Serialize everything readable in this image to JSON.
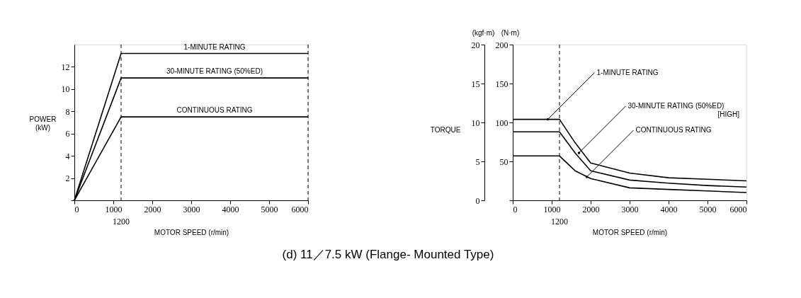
{
  "chart_data": [
    {
      "type": "line",
      "xlabel": "MOTOR SPEED (r/min)",
      "ylabel": "POWER (kW)",
      "xlim": [
        0,
        6000
      ],
      "xticks": [
        0,
        1000,
        2000,
        3000,
        4000,
        5000,
        6000
      ],
      "ylim": [
        0,
        14
      ],
      "yticks": [
        {
          "value": 0,
          "label": null
        },
        2,
        4,
        6,
        8,
        10,
        12
      ],
      "grid": false,
      "marker": "none",
      "line_style": "solid",
      "series": [
        {
          "name": "1-MINUTE RATING",
          "color": "#000000",
          "x": [
            0,
            1200,
            6000
          ],
          "values": [
            0,
            13.2,
            13.2
          ]
        },
        {
          "name": "30-MINUTE RATING (50%ED)",
          "color": "#000000",
          "x": [
            0,
            1200,
            6000
          ],
          "values": [
            0,
            11,
            11
          ]
        },
        {
          "name": "CONTINUOUS RATING",
          "color": "#000000",
          "x": [
            0,
            1200,
            6000
          ],
          "values": [
            0,
            7.5,
            7.5
          ]
        }
      ],
      "ref_lines": [
        {
          "axis": "x",
          "value": 1200,
          "label": "1200",
          "line_style": "dashed"
        },
        {
          "axis": "x",
          "value": 6000,
          "label": null,
          "line_style": "dashed"
        }
      ],
      "annotations": [
        "(d) 11／7.5 kW (Flange- Mounted Type)"
      ]
    },
    {
      "type": "line",
      "xlabel": "MOTOR SPEED (r/min)",
      "ylabel": "(N·m)",
      "y2label": "(kgf·m)",
      "xlim": [
        0,
        6000
      ],
      "xticks": [
        0,
        1000,
        2000,
        3000,
        4000,
        5000,
        6000
      ],
      "ylim": [
        0,
        200
      ],
      "yticks": [
        {
          "value": 0,
          "label": null
        },
        50,
        100,
        150,
        200
      ],
      "y2lim": [
        0,
        20
      ],
      "y2ticks": [
        0,
        5,
        10,
        15,
        20
      ],
      "grid": false,
      "marker": "none",
      "line_style": "solid",
      "series": [
        {
          "color": "#000000",
          "x": [
            0,
            1200,
            1600,
            2000,
            3000,
            4000,
            5000,
            6000
          ],
          "values": [
            104,
            104,
            74,
            48,
            35,
            29,
            27,
            25
          ]
        },
        {
          "color": "#000000",
          "x": [
            0,
            1200,
            1600,
            2000,
            3000,
            4000,
            5000,
            6000
          ],
          "values": [
            88,
            88,
            61,
            38,
            26,
            22,
            19,
            17
          ]
        },
        {
          "color": "#000000",
          "x": [
            0,
            1200,
            1600,
            2000,
            3000,
            4000,
            5000,
            6000
          ],
          "values": [
            57,
            57,
            38,
            28,
            16,
            14,
            12,
            10
          ]
        }
      ],
      "ref_lines": [
        {
          "axis": "x",
          "value": 1200,
          "label": "1200",
          "line_style": "dashed"
        }
      ],
      "annotations": [
        {
          "text": "1-MINUTE RATING",
          "x": 900,
          "y": 104
        },
        {
          "text": "30-MINUTE RATING (50%ED)",
          "x": 1700,
          "y": 61
        },
        {
          "text": "CONTINUOUS RATING",
          "x": 1900,
          "y": 30
        },
        "TORQUE",
        "[HIGH]"
      ]
    }
  ]
}
